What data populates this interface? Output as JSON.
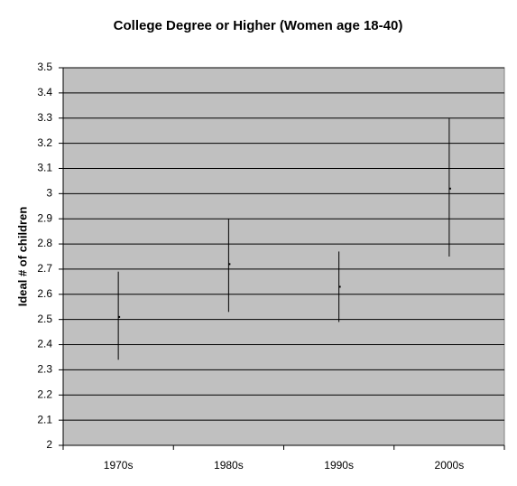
{
  "chart_data": {
    "type": "range",
    "title": "College Degree or Higher (Women age 18-40)",
    "y_label": "Ideal # of children",
    "categories": [
      "1970s",
      "1980s",
      "1990s",
      "2000s"
    ],
    "values": [
      2.51,
      2.72,
      2.63,
      3.02
    ],
    "low": [
      2.34,
      2.53,
      2.49,
      2.75
    ],
    "high": [
      2.69,
      2.9,
      2.77,
      3.3
    ],
    "color": "#000000",
    "ylim": [
      2,
      3.5
    ],
    "yticks": [
      2,
      2.1,
      2.2,
      2.3,
      2.4,
      2.5,
      2.6,
      2.7,
      2.8,
      2.9,
      3,
      3.1,
      3.2,
      3.3,
      3.4,
      3.5
    ],
    "grid": true
  }
}
